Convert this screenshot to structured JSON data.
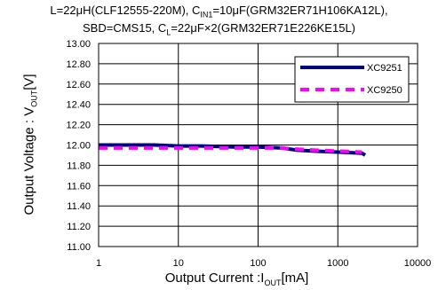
{
  "caption": {
    "line1": {
      "a": "L=22",
      "b": "μ",
      "c": "H(CLF12555-220M), C",
      "d": "IN1",
      "e": "=10",
      "f": "μ",
      "g": "F(GRM32ER71H106KA12L),"
    },
    "line2": {
      "a": "SBD=CMS15, C",
      "b": "L",
      "c": "=22",
      "d": "μ",
      "e": "F×2(GRM32ER71E226KE15L)"
    }
  },
  "chart_data": {
    "type": "line",
    "xscale": "log",
    "xlim": [
      1,
      10000
    ],
    "ylim": [
      11.0,
      13.0
    ],
    "x_ticks": [
      "1",
      "10",
      "100",
      "1000",
      "10000"
    ],
    "y_ticks": [
      "11.00",
      "11.20",
      "11.40",
      "11.60",
      "11.80",
      "12.00",
      "12.20",
      "12.40",
      "12.60",
      "12.80",
      "13.00"
    ],
    "ylabel": {
      "pre": "Output Voltage : V",
      "sub": "OUT",
      "post": "[V]"
    },
    "xlabel": {
      "pre": "Output Current :I",
      "sub": "OUT",
      "post": "[mA]"
    },
    "grid": true,
    "legend_position": "top-right",
    "series": [
      {
        "name": "XC9251",
        "color": "#000080",
        "style": "solid",
        "x": [
          1,
          2,
          5,
          10,
          20,
          50,
          100,
          200,
          300,
          500,
          1000,
          2000,
          2200
        ],
        "y": [
          12.0,
          12.0,
          12.0,
          11.99,
          11.99,
          11.98,
          11.98,
          11.97,
          11.95,
          11.94,
          11.93,
          11.92,
          11.9
        ]
      },
      {
        "name": "XC9250",
        "color": "#ff00ff",
        "style": "dashed",
        "x": [
          1,
          2,
          5,
          10,
          20,
          50,
          100,
          200,
          300,
          500,
          1000,
          2000
        ],
        "y": [
          11.97,
          11.97,
          11.97,
          11.97,
          11.97,
          11.97,
          11.97,
          11.97,
          11.96,
          11.95,
          11.94,
          11.93
        ]
      }
    ]
  }
}
